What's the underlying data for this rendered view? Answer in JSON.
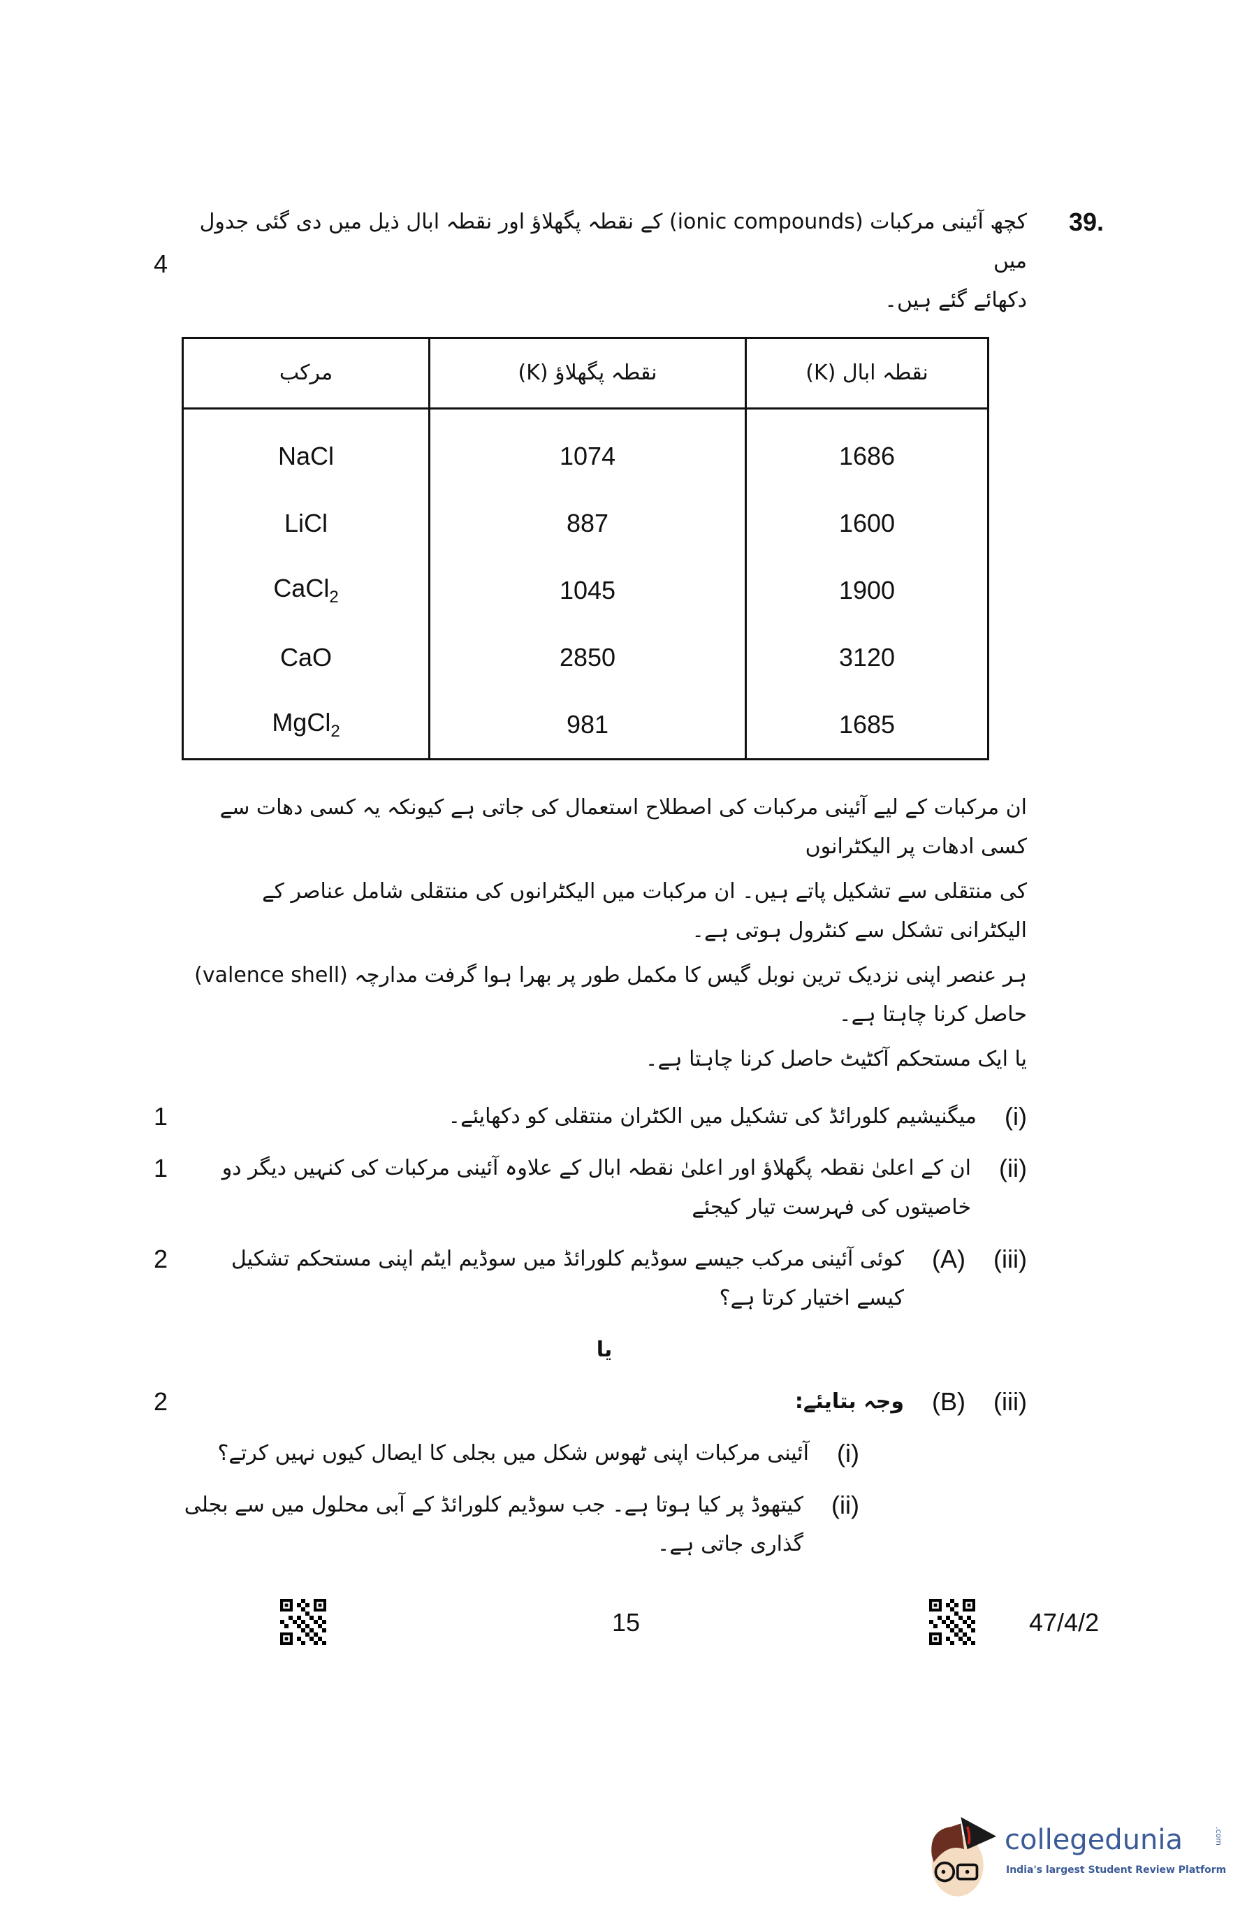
{
  "question": {
    "number": "39.",
    "intro_line1": "کچھ آئینی مرکبات (ionic compounds) کے نقطہ پگھلاؤ اور نقطہ ابال ذیل میں دی گئی جدول میں",
    "intro_line2": "دکھائے گئے ہیں۔",
    "marks": "4"
  },
  "table": {
    "headers": [
      "مرکب",
      "نقطہ پگھلاؤ (K)",
      "نقطہ ابال (K)"
    ],
    "rows": [
      {
        "compound": "NaCl",
        "sub": "",
        "melting": "1074",
        "boiling": "1686"
      },
      {
        "compound": "LiCl",
        "sub": "",
        "melting": "887",
        "boiling": "1600"
      },
      {
        "compound": "CaCl",
        "sub": "2",
        "melting": "1045",
        "boiling": "1900"
      },
      {
        "compound": "CaO",
        "sub": "",
        "melting": "2850",
        "boiling": "3120"
      },
      {
        "compound": "MgCl",
        "sub": "2",
        "melting": "981",
        "boiling": "1685"
      }
    ]
  },
  "paragraph": [
    "ان مرکبات کے لیے آئینی مرکبات کی اصطلاح استعمال کی جاتی ہے کیونکہ یہ کسی دھات سے کسی ادھات پر الیکٹرانوں",
    "کی منتقلی سے تشکیل پاتے ہیں۔ ان مرکبات میں الیکٹرانوں کی منتقلی شامل عناصر کے الیکٹرانی تشکل سے کنٹرول ہوتی ہے۔",
    "ہر عنصر اپنی نزدیک ترین نوبل گیس کا مکمل طور پر بھرا ہوا گرفت مدارچہ (valence shell) حاصل کرنا چاہتا ہے۔",
    "یا ایک مستحکم آکٹیٹ حاصل کرنا چاہتا ہے۔"
  ],
  "subquestions": {
    "i": {
      "label": "(i)",
      "text": "میگنیشیم کلورائڈ کی تشکیل میں الکٹران منتقلی کو دکھایئے۔",
      "marks": "1"
    },
    "ii": {
      "label": "(ii)",
      "text": "ان کے اعلیٰ نقطہ پگھلاؤ اور اعلیٰ نقطہ ابال کے علاوہ آئینی مرکبات کی کنہیں دیگر دو خاصیتوں کی فہرست تیار کیجئے",
      "marks": "1"
    },
    "iiiA": {
      "label": "(iii)",
      "option": "(A)",
      "text": "کوئی آئینی مرکب جیسے سوڈیم کلورائڈ میں سوڈیم ایٹم اپنی مستحکم تشکیل کیسے اختیار کرتا ہے؟",
      "marks": "2"
    },
    "or": "یا",
    "iiiB": {
      "label": "(iii)",
      "option": "(B)",
      "text": "وجہ بتایئے:",
      "marks": "2",
      "parts": [
        {
          "label": "(i)",
          "text": "آئینی مرکبات اپنی ٹھوس شکل میں بجلی کا ایصال کیوں نہیں کرتے؟"
        },
        {
          "label": "(ii)",
          "text": "کیتھوڈ پر کیا ہوتا ہے۔ جب سوڈیم کلورائڈ کے آبی محلول میں سے بجلی گذاری جاتی ہے۔"
        }
      ]
    }
  },
  "footer": {
    "page_number": "15",
    "code": "47/4/2"
  },
  "watermark": {
    "brand": "collegedunia",
    "domain": ".com",
    "tagline": "India's largest Student Review Platform",
    "brand_color": "#3b5b98"
  }
}
